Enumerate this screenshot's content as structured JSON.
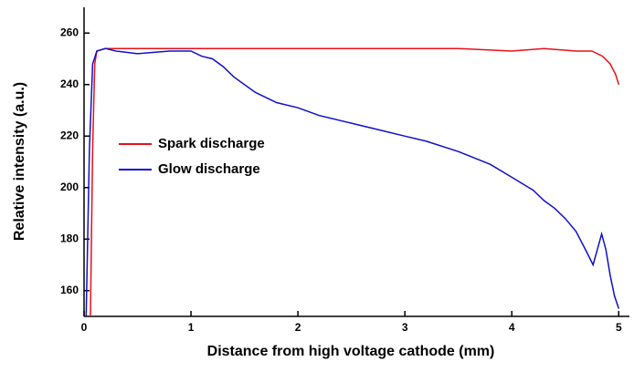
{
  "chart_data": {
    "type": "line",
    "x_label": "Distance from high voltage cathode (mm)",
    "y_label": "Relative intensity (a.u.)",
    "xlim": [
      0,
      5.1
    ],
    "ylim": [
      150,
      270
    ],
    "xticks": [
      0,
      1,
      2,
      3,
      4,
      5
    ],
    "yticks": [
      160,
      180,
      200,
      220,
      240,
      260
    ],
    "legend_position": "center-left",
    "series": [
      {
        "name": "Spark discharge",
        "color": "#e8101a",
        "x": [
          0.06,
          0.08,
          0.1,
          0.12,
          0.2,
          0.3,
          0.5,
          0.8,
          1.0,
          1.5,
          2.0,
          2.5,
          3.0,
          3.5,
          4.0,
          4.3,
          4.6,
          4.75,
          4.85,
          4.92,
          4.97,
          5.0
        ],
        "values": [
          150,
          215,
          248,
          253,
          254,
          254,
          254,
          254,
          254,
          254,
          254,
          254,
          254,
          254,
          253,
          254,
          253,
          253,
          251,
          248,
          244,
          240
        ]
      },
      {
        "name": "Glow discharge",
        "color": "#1010c8",
        "x": [
          0.02,
          0.05,
          0.08,
          0.12,
          0.2,
          0.3,
          0.5,
          0.8,
          1.0,
          1.1,
          1.2,
          1.3,
          1.4,
          1.6,
          1.8,
          2.0,
          2.2,
          2.5,
          2.8,
          3.0,
          3.2,
          3.5,
          3.8,
          4.0,
          4.2,
          4.3,
          4.4,
          4.5,
          4.6,
          4.7,
          4.76,
          4.8,
          4.84,
          4.88,
          4.92,
          4.96,
          5.0
        ],
        "values": [
          150,
          215,
          248,
          253,
          254,
          253,
          252,
          253,
          253,
          251,
          250,
          247,
          243,
          237,
          233,
          231,
          228,
          225,
          222,
          220,
          218,
          214,
          209,
          204,
          199,
          195,
          192,
          188,
          183,
          175,
          170,
          176,
          182,
          176,
          166,
          158,
          153
        ]
      }
    ]
  }
}
